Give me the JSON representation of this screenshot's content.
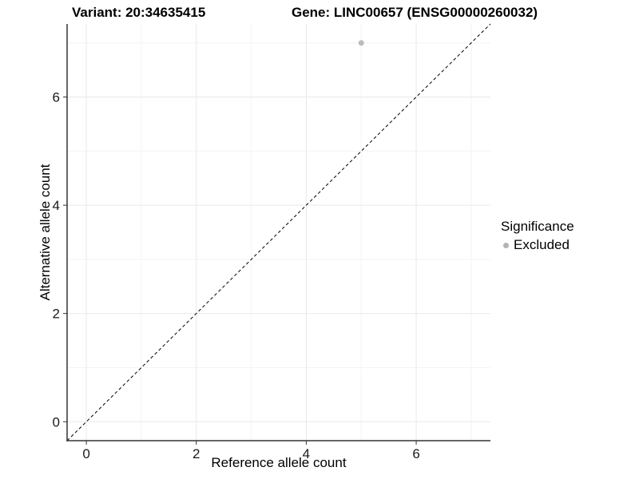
{
  "chart_data": {
    "type": "scatter",
    "title_left": "Variant: 20:34635415",
    "title_right": "Gene: LINC00657 (ENSG00000260032)",
    "xlabel": "Reference allele count",
    "ylabel": "Alternative allele count",
    "xlim": [
      -0.35,
      7.35
    ],
    "ylim": [
      -0.35,
      7.35
    ],
    "x_major_ticks": [
      0,
      2,
      4,
      6
    ],
    "y_major_ticks": [
      0,
      2,
      4,
      6
    ],
    "x_minor_gridlines": [
      1,
      3,
      5,
      7
    ],
    "y_minor_gridlines": [
      1,
      3,
      5,
      7
    ],
    "grid": "on",
    "series": [
      {
        "name": "Excluded",
        "color": "#bcbcbc",
        "points": [
          {
            "x": 5,
            "y": 7
          }
        ]
      }
    ],
    "reference_line": {
      "type": "identity",
      "style": "dashed",
      "color": "#000000",
      "from": [
        -0.35,
        -0.35
      ],
      "to": [
        7.35,
        7.35
      ]
    },
    "legend": {
      "title": "Significance",
      "position": "right",
      "entries": [
        {
          "label": "Excluded",
          "color": "#b3b3b3"
        }
      ]
    },
    "colors": {
      "background": "#ffffff",
      "major_grid": "#e9e9e9",
      "minor_grid": "#f4f4f4",
      "axis_line": "#333333",
      "tick_mark": "#333333",
      "tick_label": "#1a1a1a"
    }
  }
}
